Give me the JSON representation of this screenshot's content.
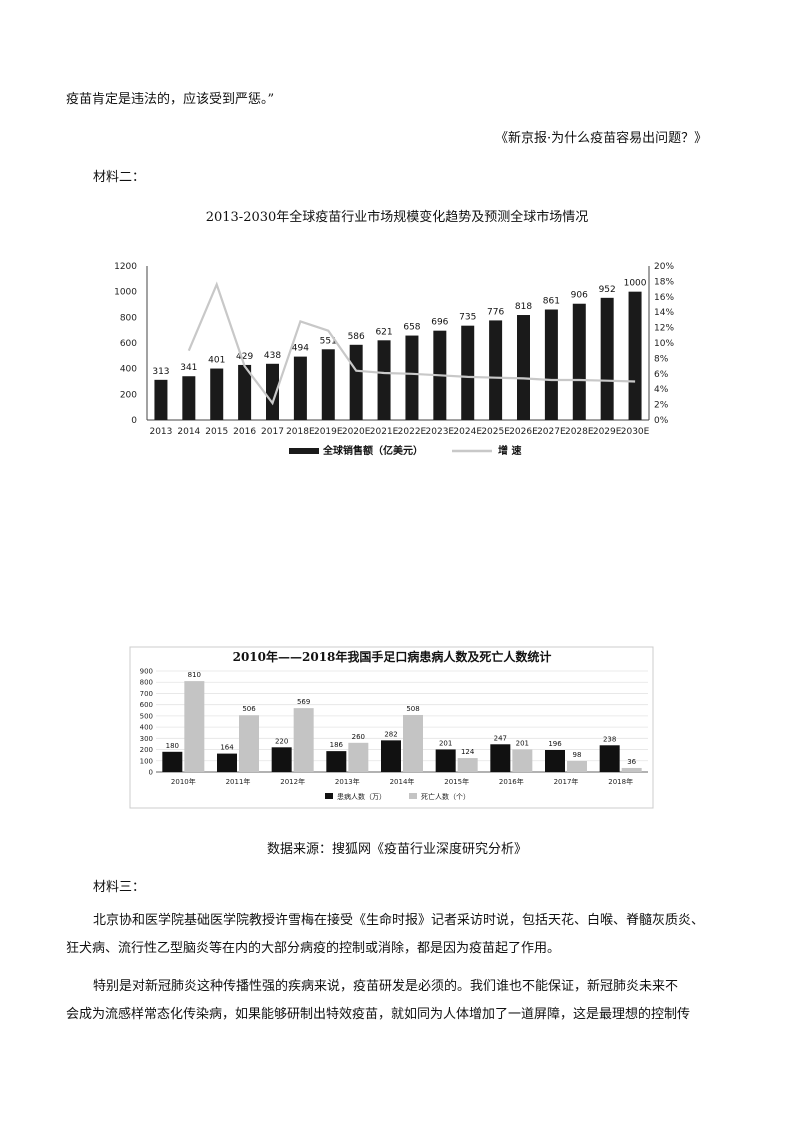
{
  "paragraphs": {
    "quote_end": "疫苗肯定是违法的，应该受到严惩。”",
    "citation": "《新京报·为什么疫苗容易出问题？》",
    "material2_heading": "材料二：",
    "chart1_title": "2013-2030年全球疫苗行业市场规模变化趋势及预测全球市场情况",
    "source": "数据来源：搜狐网《疫苗行业深度研究分析》",
    "material3_heading": "材料三：",
    "p1_line1": "北京协和医学院基础医学院教授许雪梅在接受《生命时报》记者采访时说，包括天花、白喉、脊髓灰质炎、",
    "p1_line2": "狂犬病、流行性乙型脑炎等在内的大部分病疫的控制或消除，都是因为疫苗起了作用。",
    "p2_line1": "特别是对新冠肺炎这种传播性强的疾病来说，疫苗研发是必须的。我们谁也不能保证，新冠肺炎未来不",
    "p2_line2": "会成为流感样常态化传染病，如果能够研制出特效疫苗，就如同为人体增加了一道屏障，这是最理想的控制传"
  },
  "chart_data": [
    {
      "type": "bar",
      "categories": [
        "2013",
        "2014",
        "2015",
        "2016",
        "2017",
        "2018E",
        "2019E",
        "2020E",
        "2021E",
        "2022E",
        "2023E",
        "2024E",
        "2025E",
        "2026E",
        "2027E",
        "2028E",
        "2029E",
        "2030E"
      ],
      "series": [
        {
          "name": "全球销售额（亿美元）",
          "type": "bar",
          "axis": "left",
          "color": "#1a1a1a",
          "values": [
            313,
            341,
            401,
            429,
            438,
            494,
            551,
            586,
            621,
            658,
            696,
            735,
            776,
            818,
            861,
            906,
            952,
            1000
          ]
        },
        {
          "name": "增 速",
          "type": "line",
          "axis": "right",
          "color": "#c8c8c8",
          "values": [
            null,
            9,
            17.6,
            7,
            2.2,
            12.8,
            11.6,
            6.4,
            6.1,
            6,
            5.8,
            5.6,
            5.5,
            5.4,
            5.2,
            5.2,
            5.1,
            5
          ]
        }
      ],
      "yticks_left": [
        "0",
        "200",
        "400",
        "600",
        "800",
        "1000",
        "1200"
      ],
      "yticks_right": [
        "0%",
        "2%",
        "4%",
        "6%",
        "8%",
        "10%",
        "12%",
        "14%",
        "16%",
        "18%",
        "20%"
      ],
      "ylim_left": [
        0,
        1200
      ],
      "ylim_right": [
        0,
        20
      ],
      "legend_position": "bottom"
    },
    {
      "type": "bar",
      "title": "2010年——2018年我国手足口病患病人数及死亡人数统计",
      "categories": [
        "2010年",
        "2011年",
        "2012年",
        "2013年",
        "2014年",
        "2015年",
        "2016年",
        "2017年",
        "2018年"
      ],
      "series": [
        {
          "name": "患病人数（万）",
          "color": "#111111",
          "values": [
            180,
            164,
            220,
            186,
            282,
            201,
            247,
            196,
            238
          ]
        },
        {
          "name": "死亡人数（个）",
          "color": "#c4c4c4",
          "values": [
            810,
            506,
            569,
            260,
            508,
            124,
            201,
            98,
            36
          ]
        }
      ],
      "yticks": [
        "0",
        "100",
        "200",
        "300",
        "400",
        "500",
        "600",
        "700",
        "800",
        "900"
      ],
      "ylim": [
        0,
        900
      ],
      "legend_position": "bottom"
    }
  ]
}
